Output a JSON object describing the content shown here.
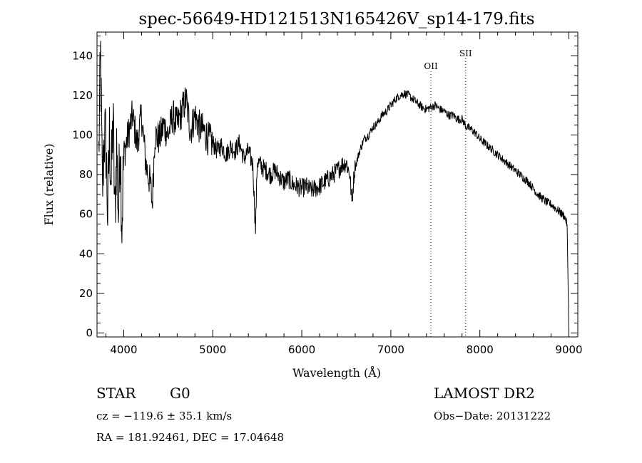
{
  "chart_data": {
    "type": "line",
    "title": "spec-56649-HD121513N165426V_sp14-179.fits",
    "xlabel": "Wavelength (Å)",
    "ylabel": "Flux (relative)",
    "xlim": [
      3700,
      9100
    ],
    "ylim": [
      -2,
      152
    ],
    "xticks": [
      4000,
      5000,
      6000,
      7000,
      8000,
      9000
    ],
    "yticks": [
      0,
      20,
      40,
      60,
      80,
      100,
      120,
      140
    ],
    "grid": false,
    "legend": "none",
    "lines": [
      {
        "label": "OII",
        "x": 7450
      },
      {
        "label": "SII",
        "x": 7840
      }
    ],
    "series": [
      {
        "x": [
          3720,
          3740,
          3760,
          3780,
          3800,
          3820,
          3840,
          3860,
          3880,
          3900,
          3920,
          3940,
          3960,
          3980,
          4000,
          4050,
          4100,
          4150,
          4200,
          4250,
          4300,
          4320,
          4350,
          4400,
          4450,
          4500,
          4550,
          4600,
          4650,
          4700,
          4750,
          4800,
          4850,
          4900,
          4950,
          5000,
          5050,
          5100,
          5150,
          5200,
          5250,
          5300,
          5350,
          5400,
          5450,
          5480,
          5500,
          5550,
          5600,
          5650,
          5700,
          5750,
          5800,
          5850,
          5900,
          5950,
          6000,
          6050,
          6100,
          6150,
          6200,
          6250,
          6300,
          6350,
          6400,
          6450,
          6500,
          6540,
          6563,
          6590,
          6650,
          6700,
          6750,
          6800,
          6850,
          6900,
          6950,
          7000,
          7050,
          7100,
          7150,
          7200,
          7250,
          7300,
          7350,
          7400,
          7450,
          7500,
          7550,
          7600,
          7650,
          7700,
          7750,
          7800,
          7850,
          7900,
          7950,
          8000,
          8050,
          8100,
          8150,
          8200,
          8250,
          8300,
          8350,
          8400,
          8450,
          8500,
          8550,
          8600,
          8650,
          8700,
          8750,
          8800,
          8850,
          8900,
          8950,
          8980,
          9000
        ],
        "values": [
          90,
          140,
          70,
          100,
          95,
          60,
          100,
          75,
          110,
          58,
          95,
          60,
          100,
          55,
          90,
          100,
          110,
          95,
          110,
          85,
          75,
          65,
          100,
          98,
          105,
          100,
          110,
          105,
          112,
          118,
          102,
          110,
          104,
          102,
          98,
          96,
          92,
          95,
          90,
          94,
          92,
          96,
          88,
          92,
          85,
          52,
          87,
          84,
          82,
          80,
          82,
          79,
          76,
          78,
          75,
          74,
          73,
          74,
          72,
          73,
          74,
          76,
          78,
          80,
          82,
          85,
          86,
          80,
          66,
          82,
          92,
          98,
          100,
          104,
          106,
          110,
          112,
          115,
          118,
          120,
          121,
          120,
          118,
          116,
          114,
          113,
          114,
          115,
          113,
          112,
          110,
          110,
          108,
          108,
          104,
          103,
          101,
          98,
          96,
          94,
          92,
          90,
          88,
          86,
          84,
          82,
          80,
          78,
          76,
          73,
          70,
          68,
          66,
          65,
          63,
          61,
          59,
          55,
          0
        ]
      }
    ]
  },
  "info": {
    "object_class": "STAR",
    "subclass": "G0",
    "survey": "LAMOST DR2",
    "redshift": "cz = −119.6 ± 35.1 km/s",
    "obs_date": "Obs−Date: 20131222",
    "coords": "RA = 181.92461, DEC =  17.04648"
  }
}
